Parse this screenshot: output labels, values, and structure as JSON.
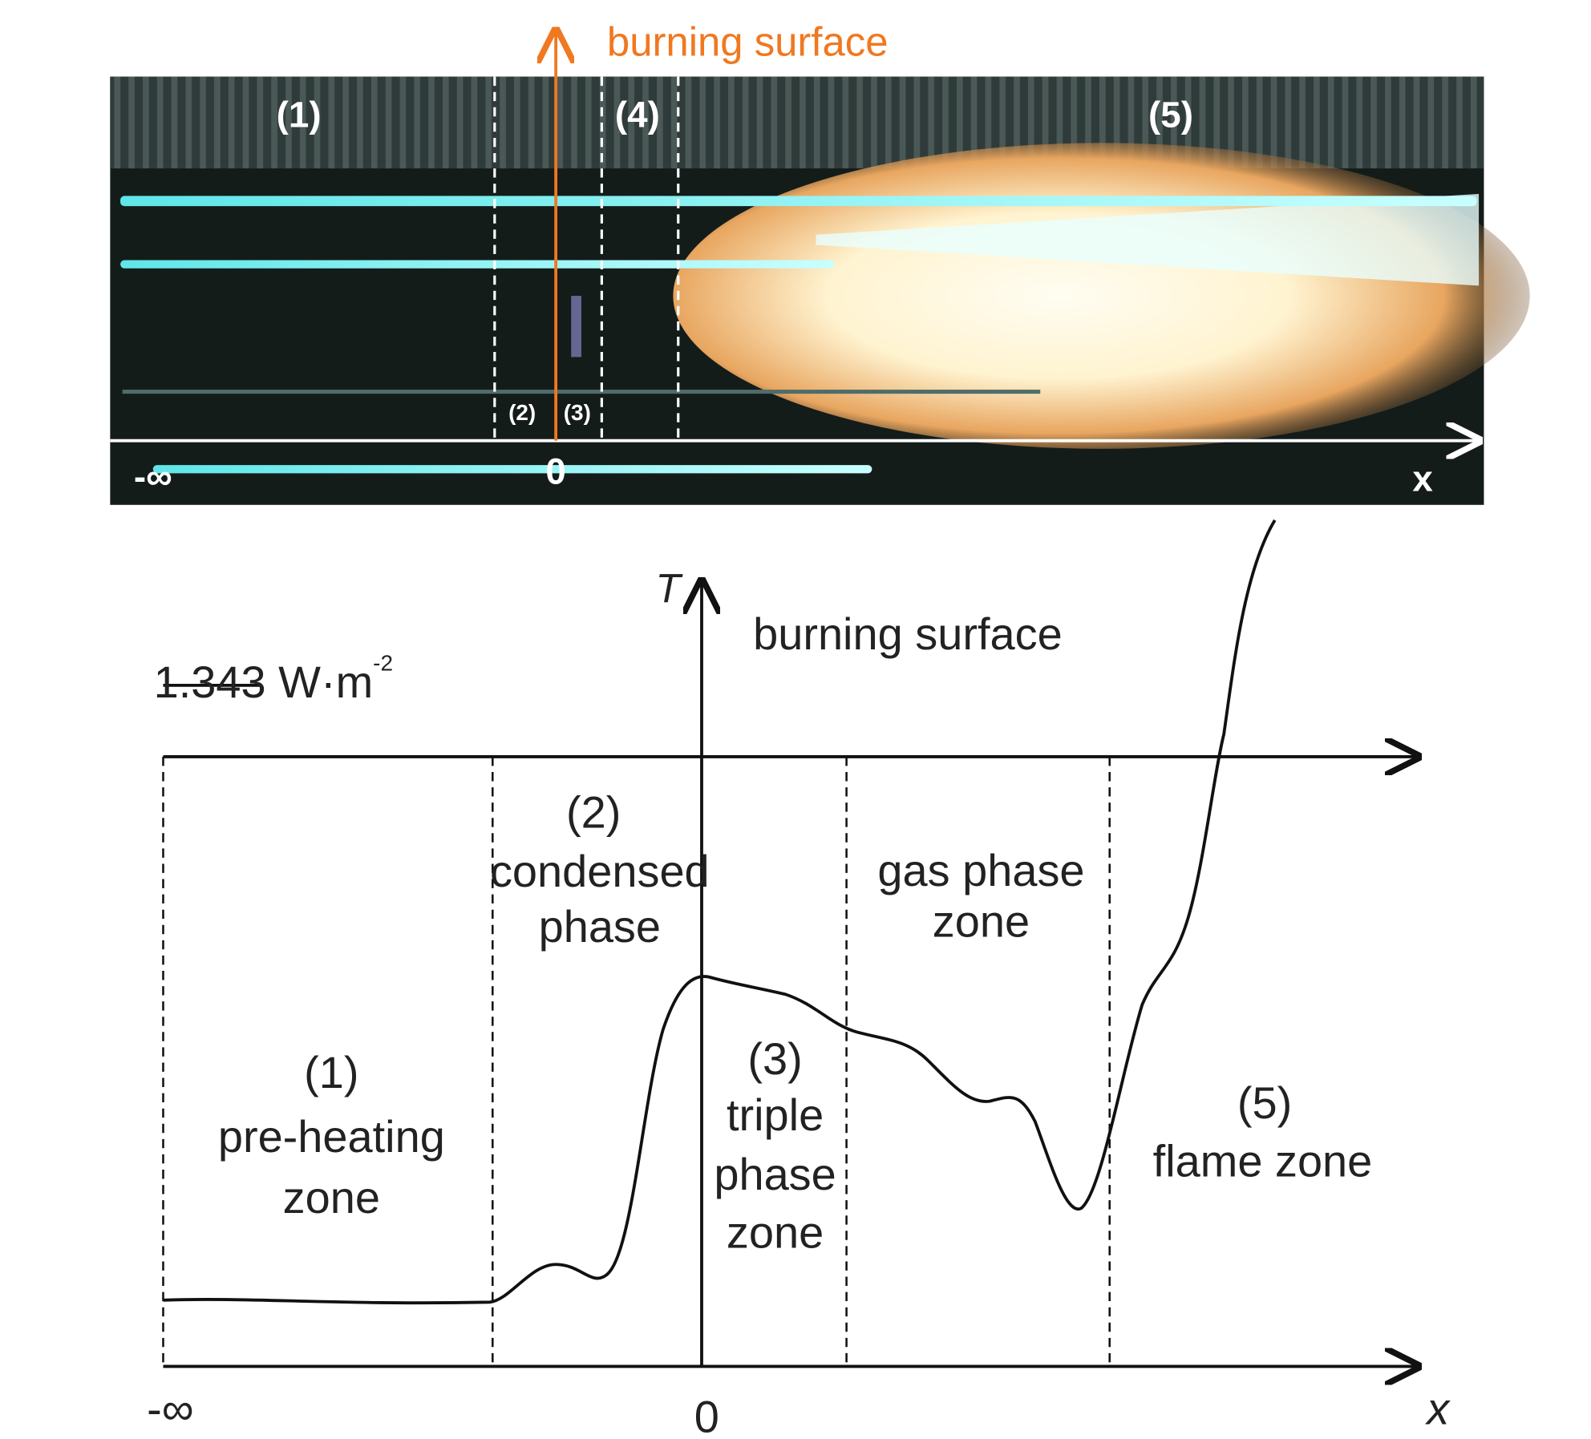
{
  "photo": {
    "title": "burning surface",
    "zones": [
      "(1)",
      "(2)",
      "(3)",
      "(4)",
      "(5)"
    ],
    "axis": {
      "start": "-∞",
      "origin": "0",
      "end": "x"
    }
  },
  "plot": {
    "y_label": "T",
    "surface_label": "burning surface",
    "legend": {
      "text": "1.343 W·m",
      "exponent": "-2"
    },
    "zones": [
      {
        "number": "(1)",
        "lines": [
          "pre-heating",
          "zone"
        ]
      },
      {
        "number": "(2)",
        "lines": [
          "condensed",
          "phase"
        ]
      },
      {
        "number": "(3)",
        "lines": [
          "triple",
          "phase",
          "zone"
        ]
      },
      {
        "lines": [
          "gas phase",
          "zone"
        ]
      },
      {
        "number": "(5)",
        "lines": [
          "flame zone"
        ]
      }
    ],
    "x_axis": {
      "start": "-∞",
      "origin": "0",
      "end": "x"
    }
  }
}
